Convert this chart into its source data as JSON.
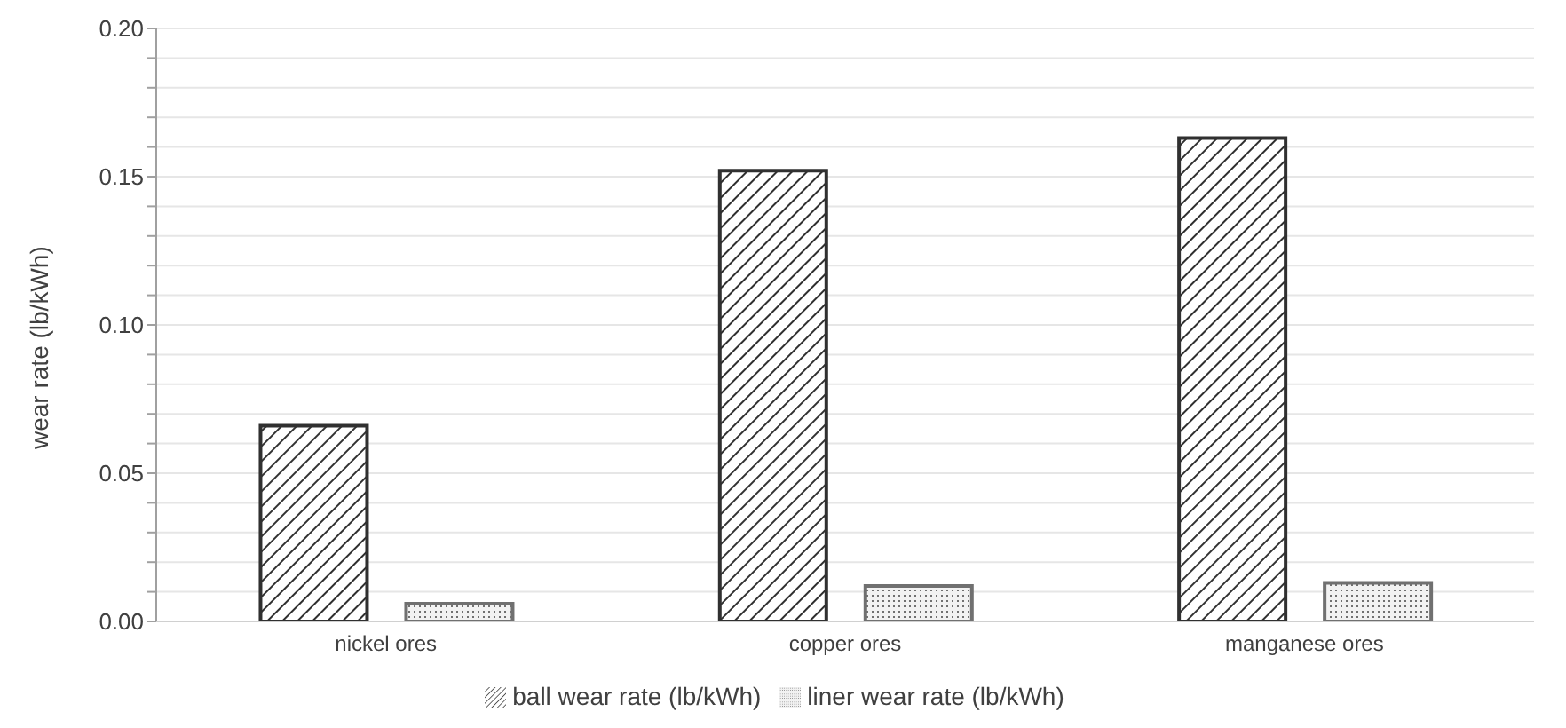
{
  "chart_data": {
    "type": "bar",
    "ylabel": "wear rate (lb/kWh)",
    "categories": [
      "nickel ores",
      "copper ores",
      "manganese ores"
    ],
    "series": [
      {
        "name": "ball wear rate (lb/kWh)",
        "color": "#303030",
        "values": [
          0.066,
          0.152,
          0.163
        ]
      },
      {
        "name": "liner wear rate (lb/kWh)",
        "color": "#707070",
        "values": [
          0.006,
          0.012,
          0.013
        ]
      }
    ],
    "ylim": [
      0,
      0.2
    ],
    "yticks": [
      {
        "value": 0,
        "label": "0.00"
      },
      {
        "value": 0.01,
        "label": null
      },
      {
        "value": 0.02,
        "label": null
      },
      {
        "value": 0.03,
        "label": null
      },
      {
        "value": 0.04,
        "label": null
      },
      {
        "value": 0.05,
        "label": "0.05"
      },
      {
        "value": 0.06,
        "label": null
      },
      {
        "value": 0.07,
        "label": null
      },
      {
        "value": 0.08,
        "label": null
      },
      {
        "value": 0.09,
        "label": null
      },
      {
        "value": 0.1,
        "label": "0.10"
      },
      {
        "value": 0.11,
        "label": null
      },
      {
        "value": 0.12,
        "label": null
      },
      {
        "value": 0.13,
        "label": null
      },
      {
        "value": 0.14,
        "label": null
      },
      {
        "value": 0.15,
        "label": "0.15"
      },
      {
        "value": 0.16,
        "label": null
      },
      {
        "value": 0.17,
        "label": null
      },
      {
        "value": 0.18,
        "label": null
      },
      {
        "value": 0.19,
        "label": null
      },
      {
        "value": 0.2,
        "label": "0.20"
      }
    ],
    "grid": "y",
    "legend": "bottom"
  }
}
